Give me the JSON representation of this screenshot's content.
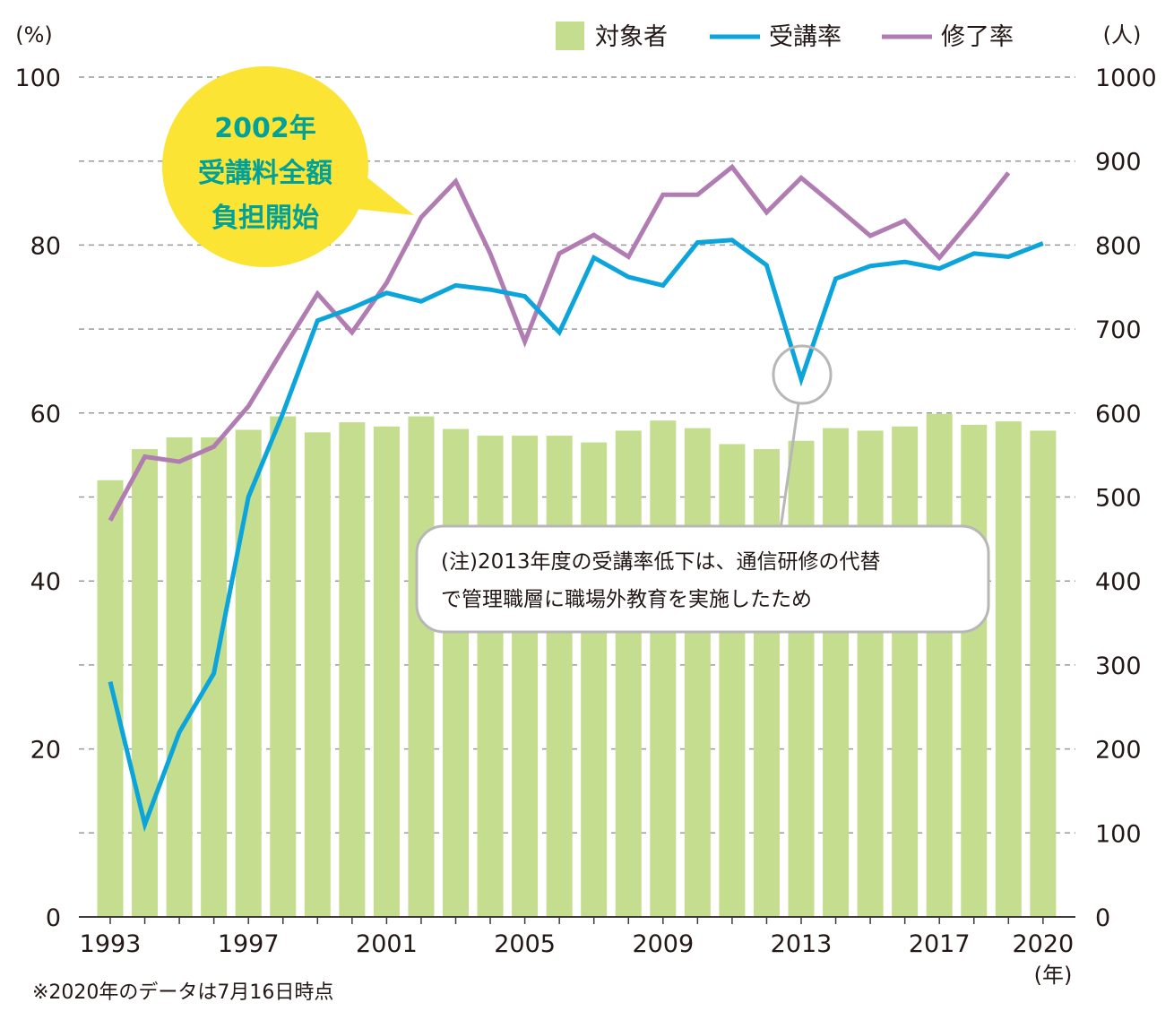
{
  "chart_data": {
    "type": "bar",
    "years": [
      1993,
      1994,
      1995,
      1996,
      1997,
      1998,
      1999,
      2000,
      2001,
      2002,
      2003,
      2004,
      2005,
      2006,
      2007,
      2008,
      2009,
      2010,
      2011,
      2012,
      2013,
      2014,
      2015,
      2016,
      2017,
      2018,
      2019,
      2020
    ],
    "x_tick_labels": [
      "1993",
      "1997",
      "2001",
      "2005",
      "2009",
      "2013",
      "2017",
      "2020"
    ],
    "x_unit_label": "(年)",
    "y_left": {
      "unit_label": "(%)",
      "range": [
        0,
        100
      ],
      "tick_labels": [
        "0",
        "20",
        "40",
        "60",
        "80",
        "100"
      ]
    },
    "y_right": {
      "unit_label": "(人)",
      "range": [
        0,
        1000
      ],
      "tick_labels": [
        "0",
        "100",
        "200",
        "300",
        "400",
        "500",
        "600",
        "700",
        "800",
        "900",
        "1000"
      ]
    },
    "grid": "dashed-horizontal",
    "legend_position": "top-right",
    "series": [
      {
        "name": "対象者",
        "kind": "bar",
        "axis": "right",
        "color": "#c5dd8e",
        "values": [
          520,
          557,
          571,
          571,
          580,
          596,
          577,
          589,
          584,
          596,
          581,
          573,
          573,
          573,
          565,
          579,
          591,
          582,
          563,
          557,
          567,
          582,
          579,
          584,
          599,
          586,
          590,
          579
        ]
      },
      {
        "name": "受講率",
        "kind": "line",
        "axis": "left",
        "color": "#0ba4db",
        "values": [
          28,
          11,
          22,
          29,
          50,
          60,
          71,
          72.5,
          74.3,
          73.3,
          75.2,
          74.7,
          73.9,
          69.6,
          78.5,
          76.2,
          75.2,
          80.3,
          80.6,
          77.6,
          64,
          76,
          77.5,
          78,
          77.2,
          79,
          78.6,
          80.2
        ]
      },
      {
        "name": "修了率",
        "kind": "line",
        "axis": "left",
        "color": "#b07cb2",
        "values": [
          47.2,
          54.8,
          54.2,
          56,
          60.8,
          67.6,
          74.2,
          69.6,
          75.5,
          83.3,
          87.6,
          79,
          68.5,
          79,
          81.2,
          78.6,
          86,
          86,
          89.3,
          83.9,
          88,
          84.6,
          81.1,
          82.9,
          78.5,
          83.4,
          88.6,
          null
        ]
      }
    ],
    "annotations": {
      "callout_lines": [
        "2002年",
        "受講料全額",
        "負担開始"
      ],
      "note_lines": [
        "(注)2013年度の受講率低下は、通信研修の代替",
        "で管理職層に職場外教育を実施したため"
      ],
      "footnote": "※2020年のデータは7月16日時点"
    },
    "colors": {
      "callout_fill": "#fce434",
      "callout_text": "#00a19a",
      "note_border": "#b7b7b7",
      "grid": "#9a9a9a",
      "axis": "#3e3a39"
    }
  }
}
